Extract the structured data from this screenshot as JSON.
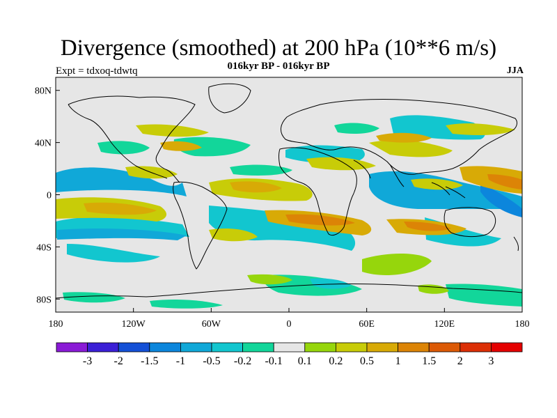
{
  "header": {
    "title": "Divergence (smoothed) at 200 hPa (10**6 m/s)",
    "subtitle": "016kyr BP - 016kyr BP",
    "experiment": "Expt = tdxoq-tdwtq",
    "season": "JJA"
  },
  "map": {
    "lat_ticks": [
      "80N",
      "40N",
      "0",
      "40S",
      "80S"
    ],
    "lon_ticks": [
      "180",
      "120W",
      "60W",
      "0",
      "60E",
      "120E",
      "180"
    ],
    "lon_range": [
      -180,
      180
    ],
    "lat_range": [
      -90,
      90
    ],
    "background_color": "#e6e6e6",
    "coastline_color": "#000000"
  },
  "colorbar": {
    "labels": [
      "-3",
      "-2",
      "-1.5",
      "-1",
      "-0.5",
      "-0.2",
      "-0.1",
      "0.1",
      "0.2",
      "0.5",
      "1",
      "1.5",
      "2",
      "3"
    ],
    "colors": [
      "#8a1ad6",
      "#3b1fd6",
      "#1450d6",
      "#0c86dc",
      "#10a8d8",
      "#12c6cf",
      "#12d69a",
      "#e6e6e6",
      "#96d60c",
      "#c8cc08",
      "#d8aa06",
      "#dc8406",
      "#dc5a06",
      "#dc2f06",
      "#e40000"
    ]
  }
}
